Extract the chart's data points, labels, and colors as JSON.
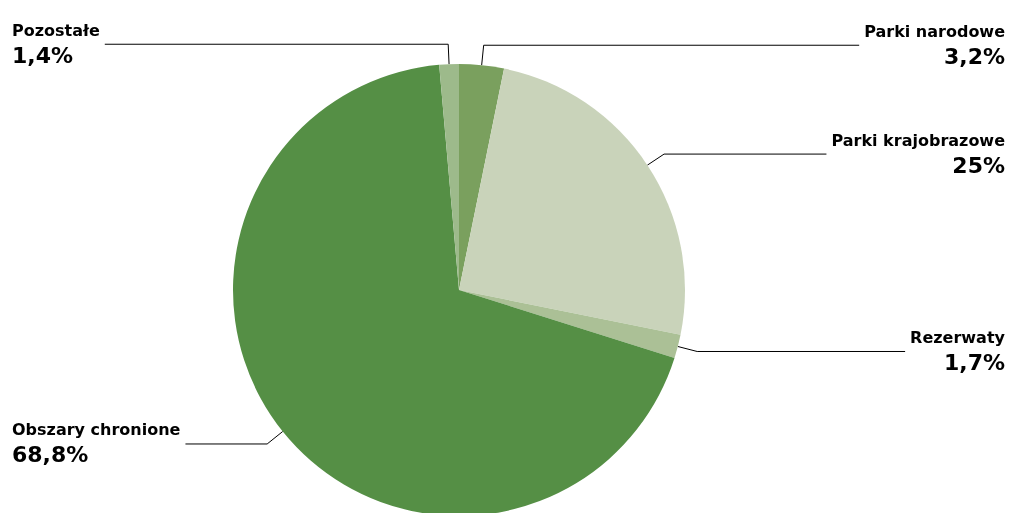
{
  "chart_data": {
    "type": "pie",
    "categories": [
      "Parki narodowe",
      "Parki krajobrazowe",
      "Rezerwaty",
      "Obszary chronione",
      "Pozostałe"
    ],
    "values": [
      3.2,
      25,
      1.7,
      68.8,
      1.4
    ],
    "colors": [
      "#7aa05e",
      "#c9d3ba",
      "#abc096",
      "#558f45",
      "#9dba8b"
    ],
    "value_labels": [
      "3,2%",
      "25%",
      "1,7%",
      "68,8%",
      "1,4%"
    ]
  }
}
